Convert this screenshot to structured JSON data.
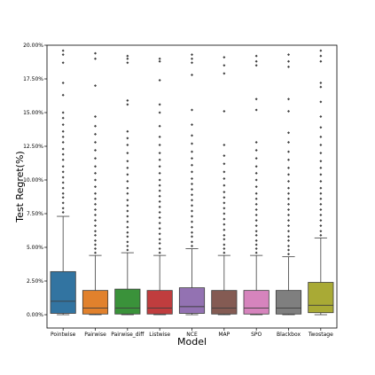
{
  "chart_data": {
    "type": "box",
    "xlabel": "Model",
    "ylabel": "Test Regret(%)",
    "ylim": [
      0,
      20
    ],
    "yticks": [
      0,
      2.5,
      5,
      7.5,
      10,
      12.5,
      15,
      17.5,
      20
    ],
    "ytick_labels": [
      "0.00%",
      "2.50%",
      "5.00%",
      "7.50%",
      "10.00%",
      "12.50%",
      "15.00%",
      "17.50%",
      "20.00%"
    ],
    "grid": false,
    "legend": "none",
    "categories": [
      "Pointwise",
      "Pairwise",
      "Pairwise_diff",
      "Listwise",
      "NCE",
      "MAP",
      "SPO",
      "Blackbox",
      "Twostage"
    ],
    "series": [
      {
        "color": "#3274a1",
        "q1": 0.1,
        "median": 1.0,
        "q3": 3.2,
        "whisker_low": 0.0,
        "whisker_high": 7.3,
        "outliers": [
          7.6,
          7.9,
          8.3,
          8.7,
          9.0,
          9.4,
          9.8,
          10.2,
          10.6,
          11.0,
          11.5,
          11.9,
          12.3,
          12.8,
          13.2,
          13.6,
          14.1,
          14.6,
          15.0,
          16.3,
          17.2,
          18.7,
          19.3,
          19.6
        ]
      },
      {
        "color": "#e1812c",
        "q1": 0.05,
        "median": 0.5,
        "q3": 1.8,
        "whisker_low": 0.0,
        "whisker_high": 4.4,
        "outliers": [
          4.6,
          4.9,
          5.2,
          5.5,
          5.9,
          6.2,
          6.6,
          7.0,
          7.4,
          7.8,
          8.2,
          8.6,
          9.0,
          9.5,
          10.0,
          10.5,
          11.0,
          11.6,
          12.2,
          12.8,
          13.4,
          14.0,
          14.7,
          17.0,
          19.0,
          19.4
        ]
      },
      {
        "color": "#3a923a",
        "q1": 0.05,
        "median": 0.5,
        "q3": 1.9,
        "whisker_low": 0.0,
        "whisker_high": 4.6,
        "outliers": [
          4.8,
          5.1,
          5.4,
          5.8,
          6.1,
          6.5,
          6.9,
          7.3,
          7.7,
          8.1,
          8.5,
          9.0,
          9.4,
          9.9,
          10.4,
          10.9,
          11.4,
          12.0,
          12.6,
          13.1,
          13.6,
          15.6,
          15.9,
          18.7,
          19.0,
          19.2
        ]
      },
      {
        "color": "#c03d3e",
        "q1": 0.05,
        "median": 0.5,
        "q3": 1.8,
        "whisker_low": 0.0,
        "whisker_high": 4.4,
        "outliers": [
          4.6,
          4.9,
          5.3,
          5.6,
          6.0,
          6.4,
          6.8,
          7.2,
          7.6,
          8.0,
          8.4,
          8.8,
          9.2,
          9.6,
          10.0,
          10.5,
          11.0,
          11.5,
          12.0,
          12.6,
          13.2,
          14.0,
          15.0,
          15.6,
          17.4,
          18.8,
          19.0
        ]
      },
      {
        "color": "#9372b2",
        "q1": 0.1,
        "median": 0.6,
        "q3": 2.0,
        "whisker_low": 0.0,
        "whisker_high": 4.9,
        "outliers": [
          5.1,
          5.4,
          5.8,
          6.1,
          6.5,
          6.9,
          7.3,
          7.7,
          8.1,
          8.5,
          8.9,
          9.3,
          9.7,
          10.1,
          10.6,
          11.1,
          11.6,
          12.1,
          12.7,
          13.3,
          14.1,
          15.2,
          17.8,
          18.7,
          19.0,
          19.3
        ]
      },
      {
        "color": "#845b53",
        "q1": 0.05,
        "median": 0.5,
        "q3": 1.8,
        "whisker_low": 0.0,
        "whisker_high": 4.4,
        "outliers": [
          4.6,
          4.9,
          5.2,
          5.6,
          5.9,
          6.3,
          6.7,
          7.1,
          7.5,
          7.9,
          8.3,
          8.7,
          9.1,
          9.6,
          10.1,
          10.6,
          11.2,
          11.8,
          12.6,
          15.1,
          17.9,
          18.5,
          19.1
        ]
      },
      {
        "color": "#d684bd",
        "q1": 0.05,
        "median": 0.5,
        "q3": 1.8,
        "whisker_low": 0.0,
        "whisker_high": 4.4,
        "outliers": [
          4.6,
          4.9,
          5.2,
          5.5,
          5.9,
          6.2,
          6.6,
          7.0,
          7.4,
          7.8,
          8.2,
          8.6,
          9.0,
          9.5,
          10.0,
          10.5,
          11.0,
          11.6,
          12.2,
          12.8,
          15.2,
          16.0,
          18.5,
          18.8,
          19.2
        ]
      },
      {
        "color": "#7f7f7f",
        "q1": 0.05,
        "median": 0.5,
        "q3": 1.8,
        "whisker_low": 0.0,
        "whisker_high": 4.3,
        "outliers": [
          4.5,
          4.8,
          5.1,
          5.5,
          5.8,
          6.2,
          6.6,
          7.0,
          7.4,
          7.8,
          8.2,
          8.6,
          9.0,
          9.4,
          9.9,
          10.4,
          10.9,
          11.5,
          12.1,
          12.8,
          13.5,
          15.1,
          16.0,
          18.4,
          18.8,
          19.3
        ]
      },
      {
        "color": "#a9aa35",
        "q1": 0.15,
        "median": 0.7,
        "q3": 2.4,
        "whisker_low": 0.0,
        "whisker_high": 5.7,
        "outliers": [
          5.9,
          6.2,
          6.6,
          7.0,
          7.4,
          7.8,
          8.2,
          8.6,
          9.0,
          9.4,
          9.9,
          10.4,
          10.9,
          11.4,
          12.0,
          12.6,
          13.2,
          13.9,
          14.7,
          15.8,
          16.9,
          17.2,
          18.8,
          19.2,
          19.6
        ]
      }
    ]
  }
}
